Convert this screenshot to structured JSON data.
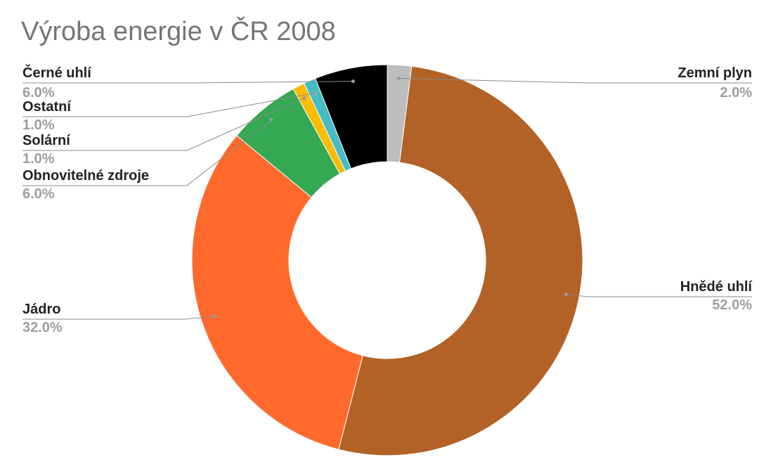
{
  "chart_data": {
    "type": "pie",
    "title": "Výroba energie v ČR 2008",
    "donut": true,
    "legend": "none",
    "slices": [
      {
        "label": "Zemní plyn",
        "value": 2.0,
        "value_label": "2.0%",
        "color": "#bdbdbd",
        "side": "right"
      },
      {
        "label": "Hnědé uhlí",
        "value": 52.0,
        "value_label": "52.0%",
        "color": "#b26226",
        "side": "right"
      },
      {
        "label": "Jádro",
        "value": 32.0,
        "value_label": "32.0%",
        "color": "#ff6a2c",
        "side": "left"
      },
      {
        "label": "Obnovitelné zdroje",
        "value": 6.0,
        "value_label": "6.0%",
        "color": "#34a853",
        "side": "left"
      },
      {
        "label": "Solární",
        "value": 1.0,
        "value_label": "1.0%",
        "color": "#fbbc04",
        "side": "left"
      },
      {
        "label": "Ostatní",
        "value": 1.0,
        "value_label": "1.0%",
        "color": "#46bdc6",
        "side": "left"
      },
      {
        "label": "Černé uhlí",
        "value": 6.0,
        "value_label": "6.0%",
        "color": "#000000",
        "side": "left"
      }
    ]
  }
}
